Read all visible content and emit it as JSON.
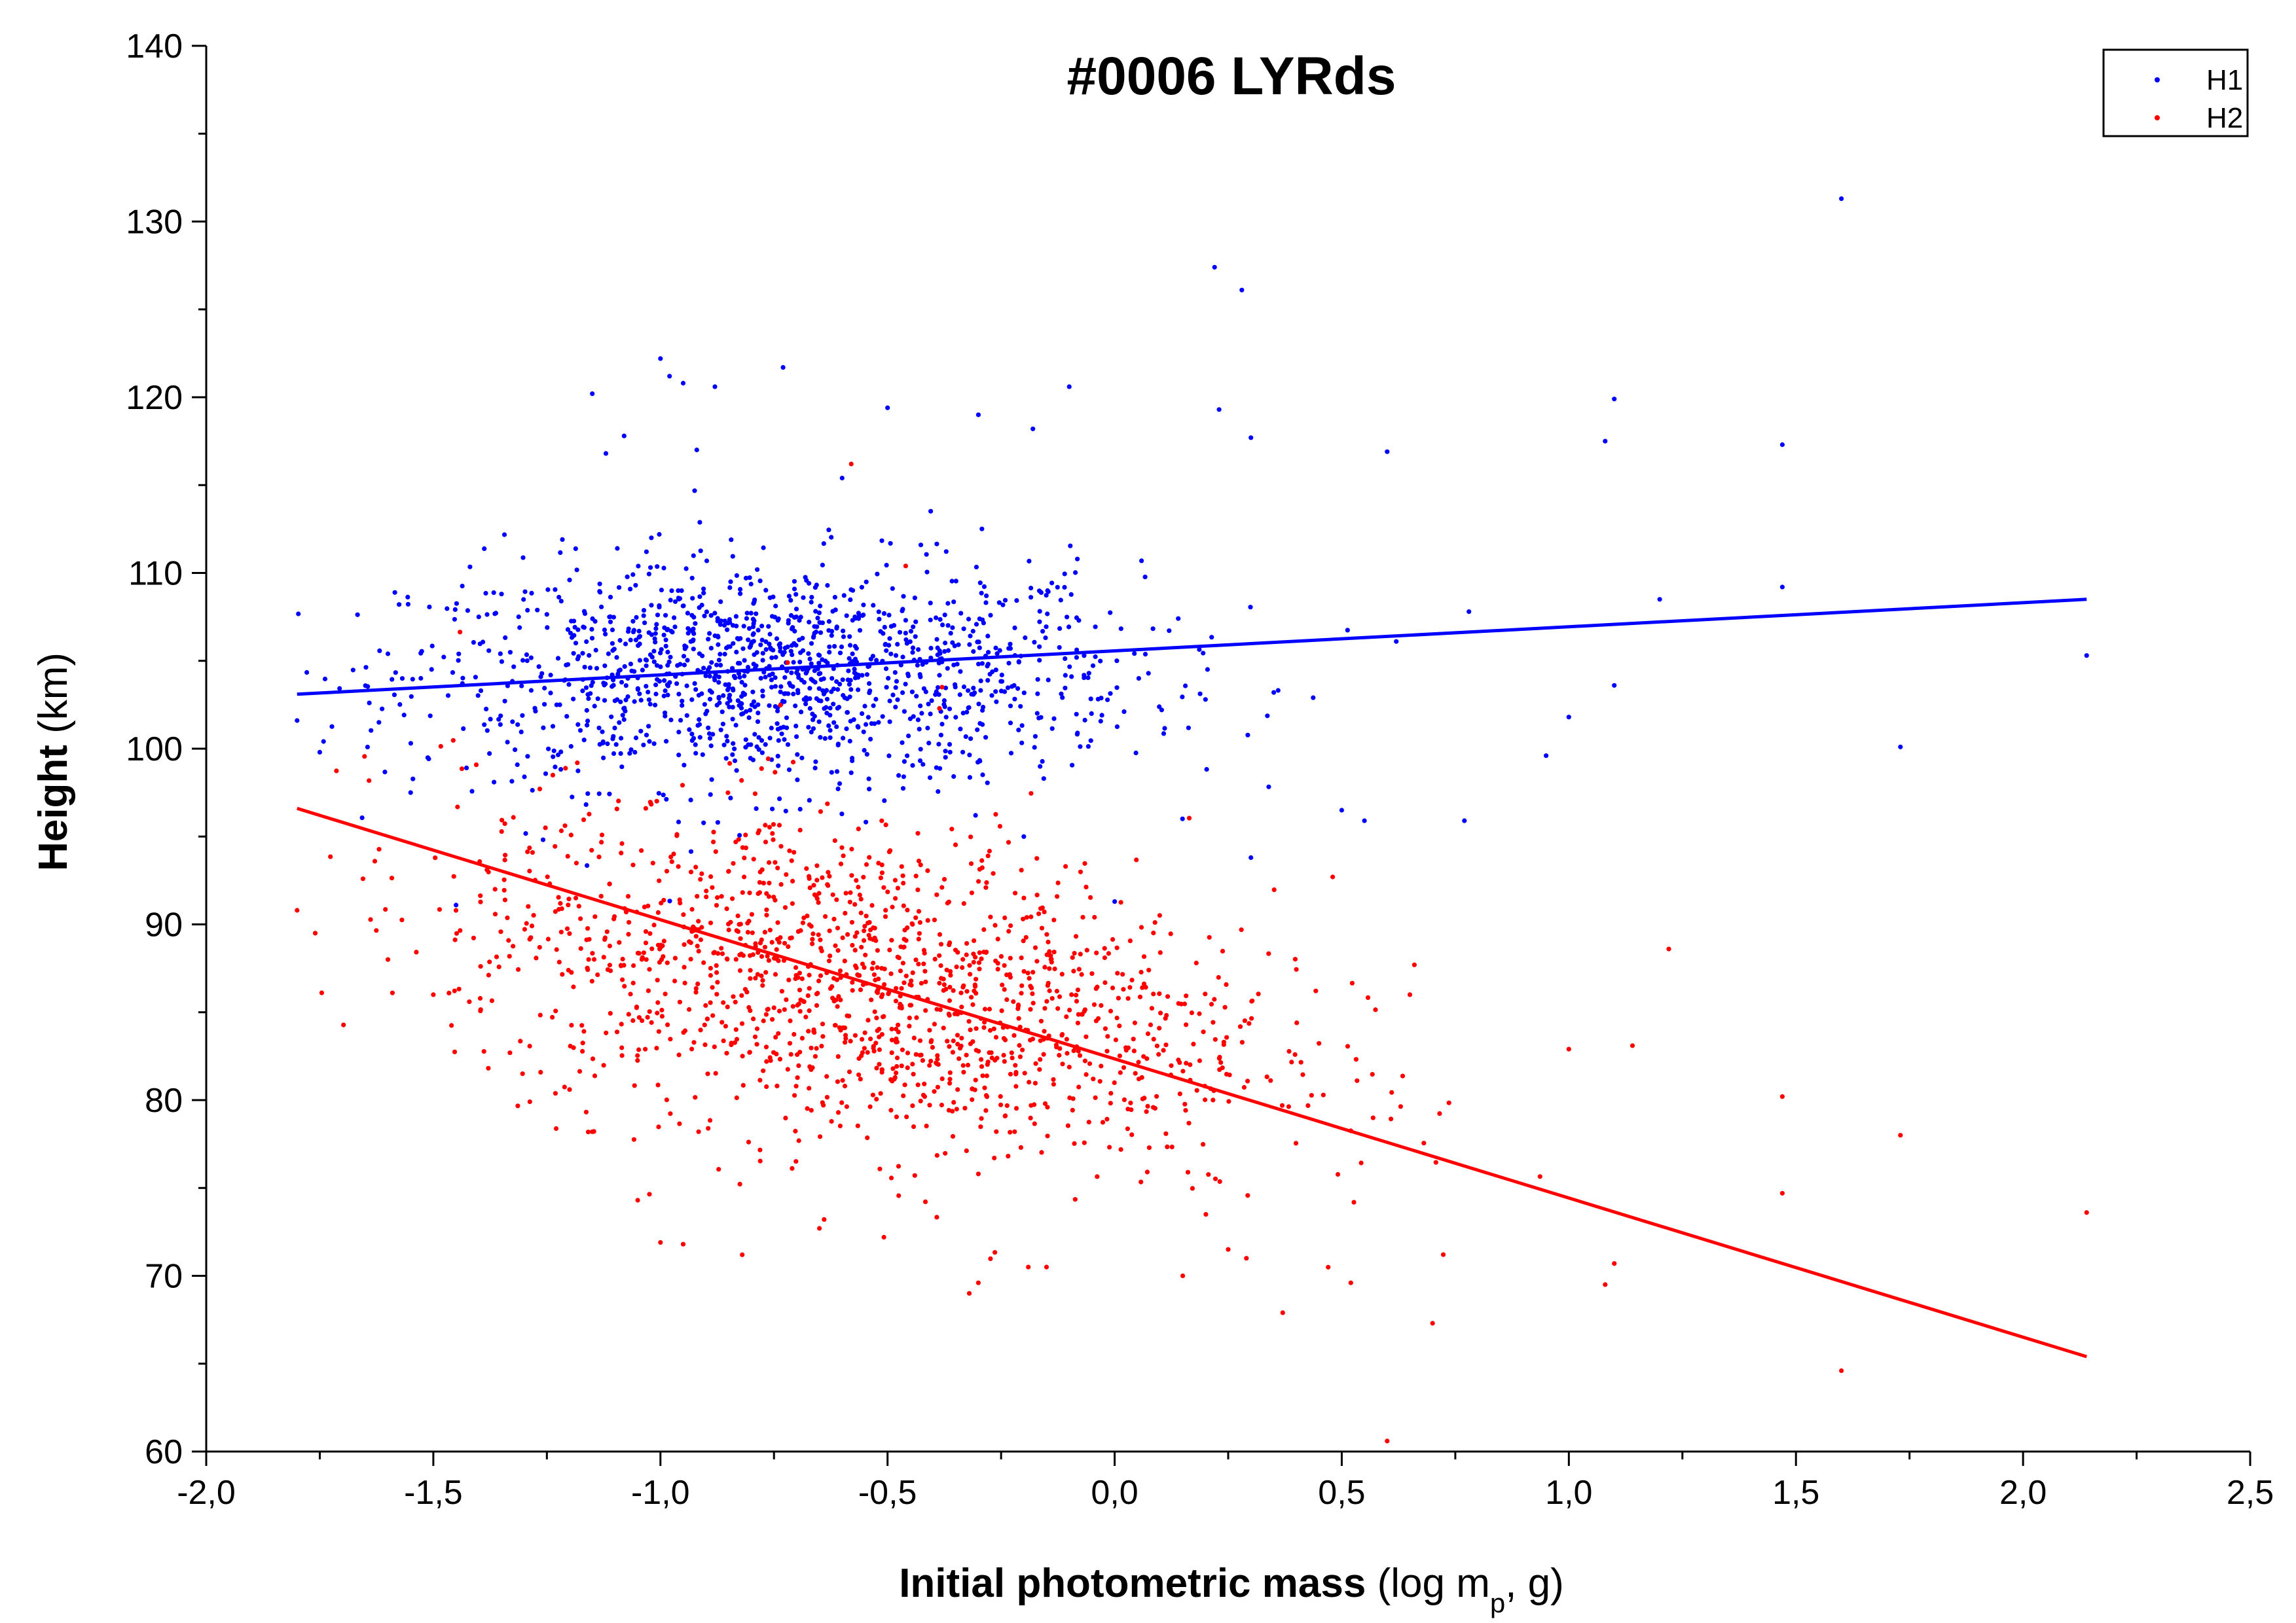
{
  "chart_data": {
    "type": "scatter",
    "title": "#0006 LYRds",
    "xlabel": {
      "bold": "Initial photometric mass",
      "pre": "(log m",
      "sub": "p",
      "post": ", g)"
    },
    "ylabel": {
      "bold": "Height",
      "rest": "(km)"
    },
    "xlim": [
      -2.0,
      2.5
    ],
    "ylim": [
      60,
      140
    ],
    "x_ticks": [
      -2.0,
      -1.5,
      -1.0,
      -0.5,
      0.0,
      0.5,
      1.0,
      1.5,
      2.0,
      2.5
    ],
    "x_tick_labels": [
      "-2,0",
      "-1,5",
      "-1,0",
      "-0,5",
      "0,0",
      "0,5",
      "1,0",
      "1,5",
      "2,0",
      "2,5"
    ],
    "y_ticks": [
      60,
      70,
      80,
      90,
      100,
      110,
      120,
      130,
      140
    ],
    "y_tick_labels": [
      "60",
      "70",
      "80",
      "90",
      "100",
      "110",
      "120",
      "130",
      "140"
    ],
    "legend_position": "top-right",
    "grid": false,
    "series": [
      {
        "name": "H1",
        "color": "#0000ff",
        "fit": {
          "x": [
            -1.8,
            2.14
          ],
          "y": [
            103.1,
            108.5
          ]
        },
        "points": [
          [
            -1.8,
            101.6
          ],
          [
            -1.75,
            99.8
          ],
          [
            -1.6,
            105.4
          ],
          [
            -1.55,
            97.5
          ],
          [
            -1.45,
            91.1
          ],
          [
            -1.4,
            107.5
          ],
          [
            -1.35,
            108.8
          ],
          [
            -1.2,
            109.6
          ],
          [
            -1.15,
            120.2
          ],
          [
            -1.12,
            116.8
          ],
          [
            -1.08,
            117.8
          ],
          [
            -1.02,
            112.0
          ],
          [
            -1.0,
            122.2
          ],
          [
            -0.98,
            121.2
          ],
          [
            -0.95,
            120.8
          ],
          [
            -0.88,
            120.6
          ],
          [
            -0.92,
            117.0
          ],
          [
            -0.73,
            121.7
          ],
          [
            -0.6,
            115.4
          ],
          [
            -0.5,
            119.4
          ],
          [
            -0.3,
            119.0
          ],
          [
            -0.18,
            118.2
          ],
          [
            -0.1,
            120.6
          ],
          [
            0.22,
            127.4
          ],
          [
            0.28,
            126.1
          ],
          [
            0.23,
            119.3
          ],
          [
            0.3,
            117.7
          ],
          [
            0.6,
            116.9
          ],
          [
            1.08,
            117.5
          ],
          [
            1.1,
            119.9
          ],
          [
            1.47,
            117.3
          ],
          [
            1.6,
            131.3
          ],
          [
            0.2,
            102.8
          ],
          [
            0.3,
            93.8
          ],
          [
            0.5,
            96.5
          ],
          [
            0.55,
            95.9
          ],
          [
            0.77,
            95.9
          ],
          [
            0.95,
            99.6
          ],
          [
            1.0,
            101.8
          ],
          [
            1.1,
            103.6
          ],
          [
            1.73,
            100.1
          ],
          [
            2.14,
            105.3
          ],
          [
            1.47,
            109.2
          ],
          [
            1.2,
            108.5
          ],
          [
            0.0,
            91.3
          ],
          [
            -0.2,
            95.0
          ],
          [
            0.62,
            106.1
          ],
          [
            0.78,
            107.8
          ]
        ],
        "cluster": {
          "cx": -0.75,
          "cy": 104.2,
          "sx": 0.4,
          "sy": 3.2,
          "n": 1380
        }
      },
      {
        "name": "H2",
        "color": "#ff0000",
        "fit": {
          "x": [
            -1.8,
            2.14
          ],
          "y": [
            96.6,
            65.4
          ]
        },
        "points": [
          [
            -1.8,
            90.8
          ],
          [
            -1.76,
            89.5
          ],
          [
            -1.6,
            88.0
          ],
          [
            -1.59,
            86.1
          ],
          [
            -1.5,
            86.0
          ],
          [
            -1.2,
            80.6
          ],
          [
            -1.15,
            78.2
          ],
          [
            -1.05,
            74.3
          ],
          [
            -1.0,
            71.9
          ],
          [
            -0.95,
            71.8
          ],
          [
            -0.82,
            71.2
          ],
          [
            -0.65,
            72.7
          ],
          [
            -0.32,
            69.0
          ],
          [
            -0.3,
            69.6
          ],
          [
            -0.19,
            70.5
          ],
          [
            -0.15,
            70.5
          ],
          [
            0.15,
            70.0
          ],
          [
            0.25,
            71.5
          ],
          [
            0.29,
            71.0
          ],
          [
            0.37,
            67.9
          ],
          [
            0.52,
            69.6
          ],
          [
            0.6,
            60.6
          ],
          [
            0.7,
            67.3
          ],
          [
            1.08,
            69.5
          ],
          [
            1.1,
            70.7
          ],
          [
            1.6,
            64.6
          ],
          [
            2.14,
            73.6
          ],
          [
            1.73,
            78.0
          ],
          [
            1.47,
            80.2
          ],
          [
            1.47,
            74.7
          ],
          [
            1.22,
            88.6
          ],
          [
            1.14,
            83.1
          ],
          [
            1.0,
            82.9
          ],
          [
            0.65,
            86.0
          ],
          [
            0.66,
            87.7
          ],
          [
            0.48,
            92.7
          ],
          [
            -0.58,
            116.2
          ],
          [
            -0.46,
            110.4
          ],
          [
            -0.72,
            104.9
          ],
          [
            -0.38,
            103.5
          ]
        ],
        "cluster": {
          "cx": -0.55,
          "cy": 86.5,
          "sx": 0.45,
          "sy": 4.6,
          "n": 1500
        }
      }
    ]
  }
}
